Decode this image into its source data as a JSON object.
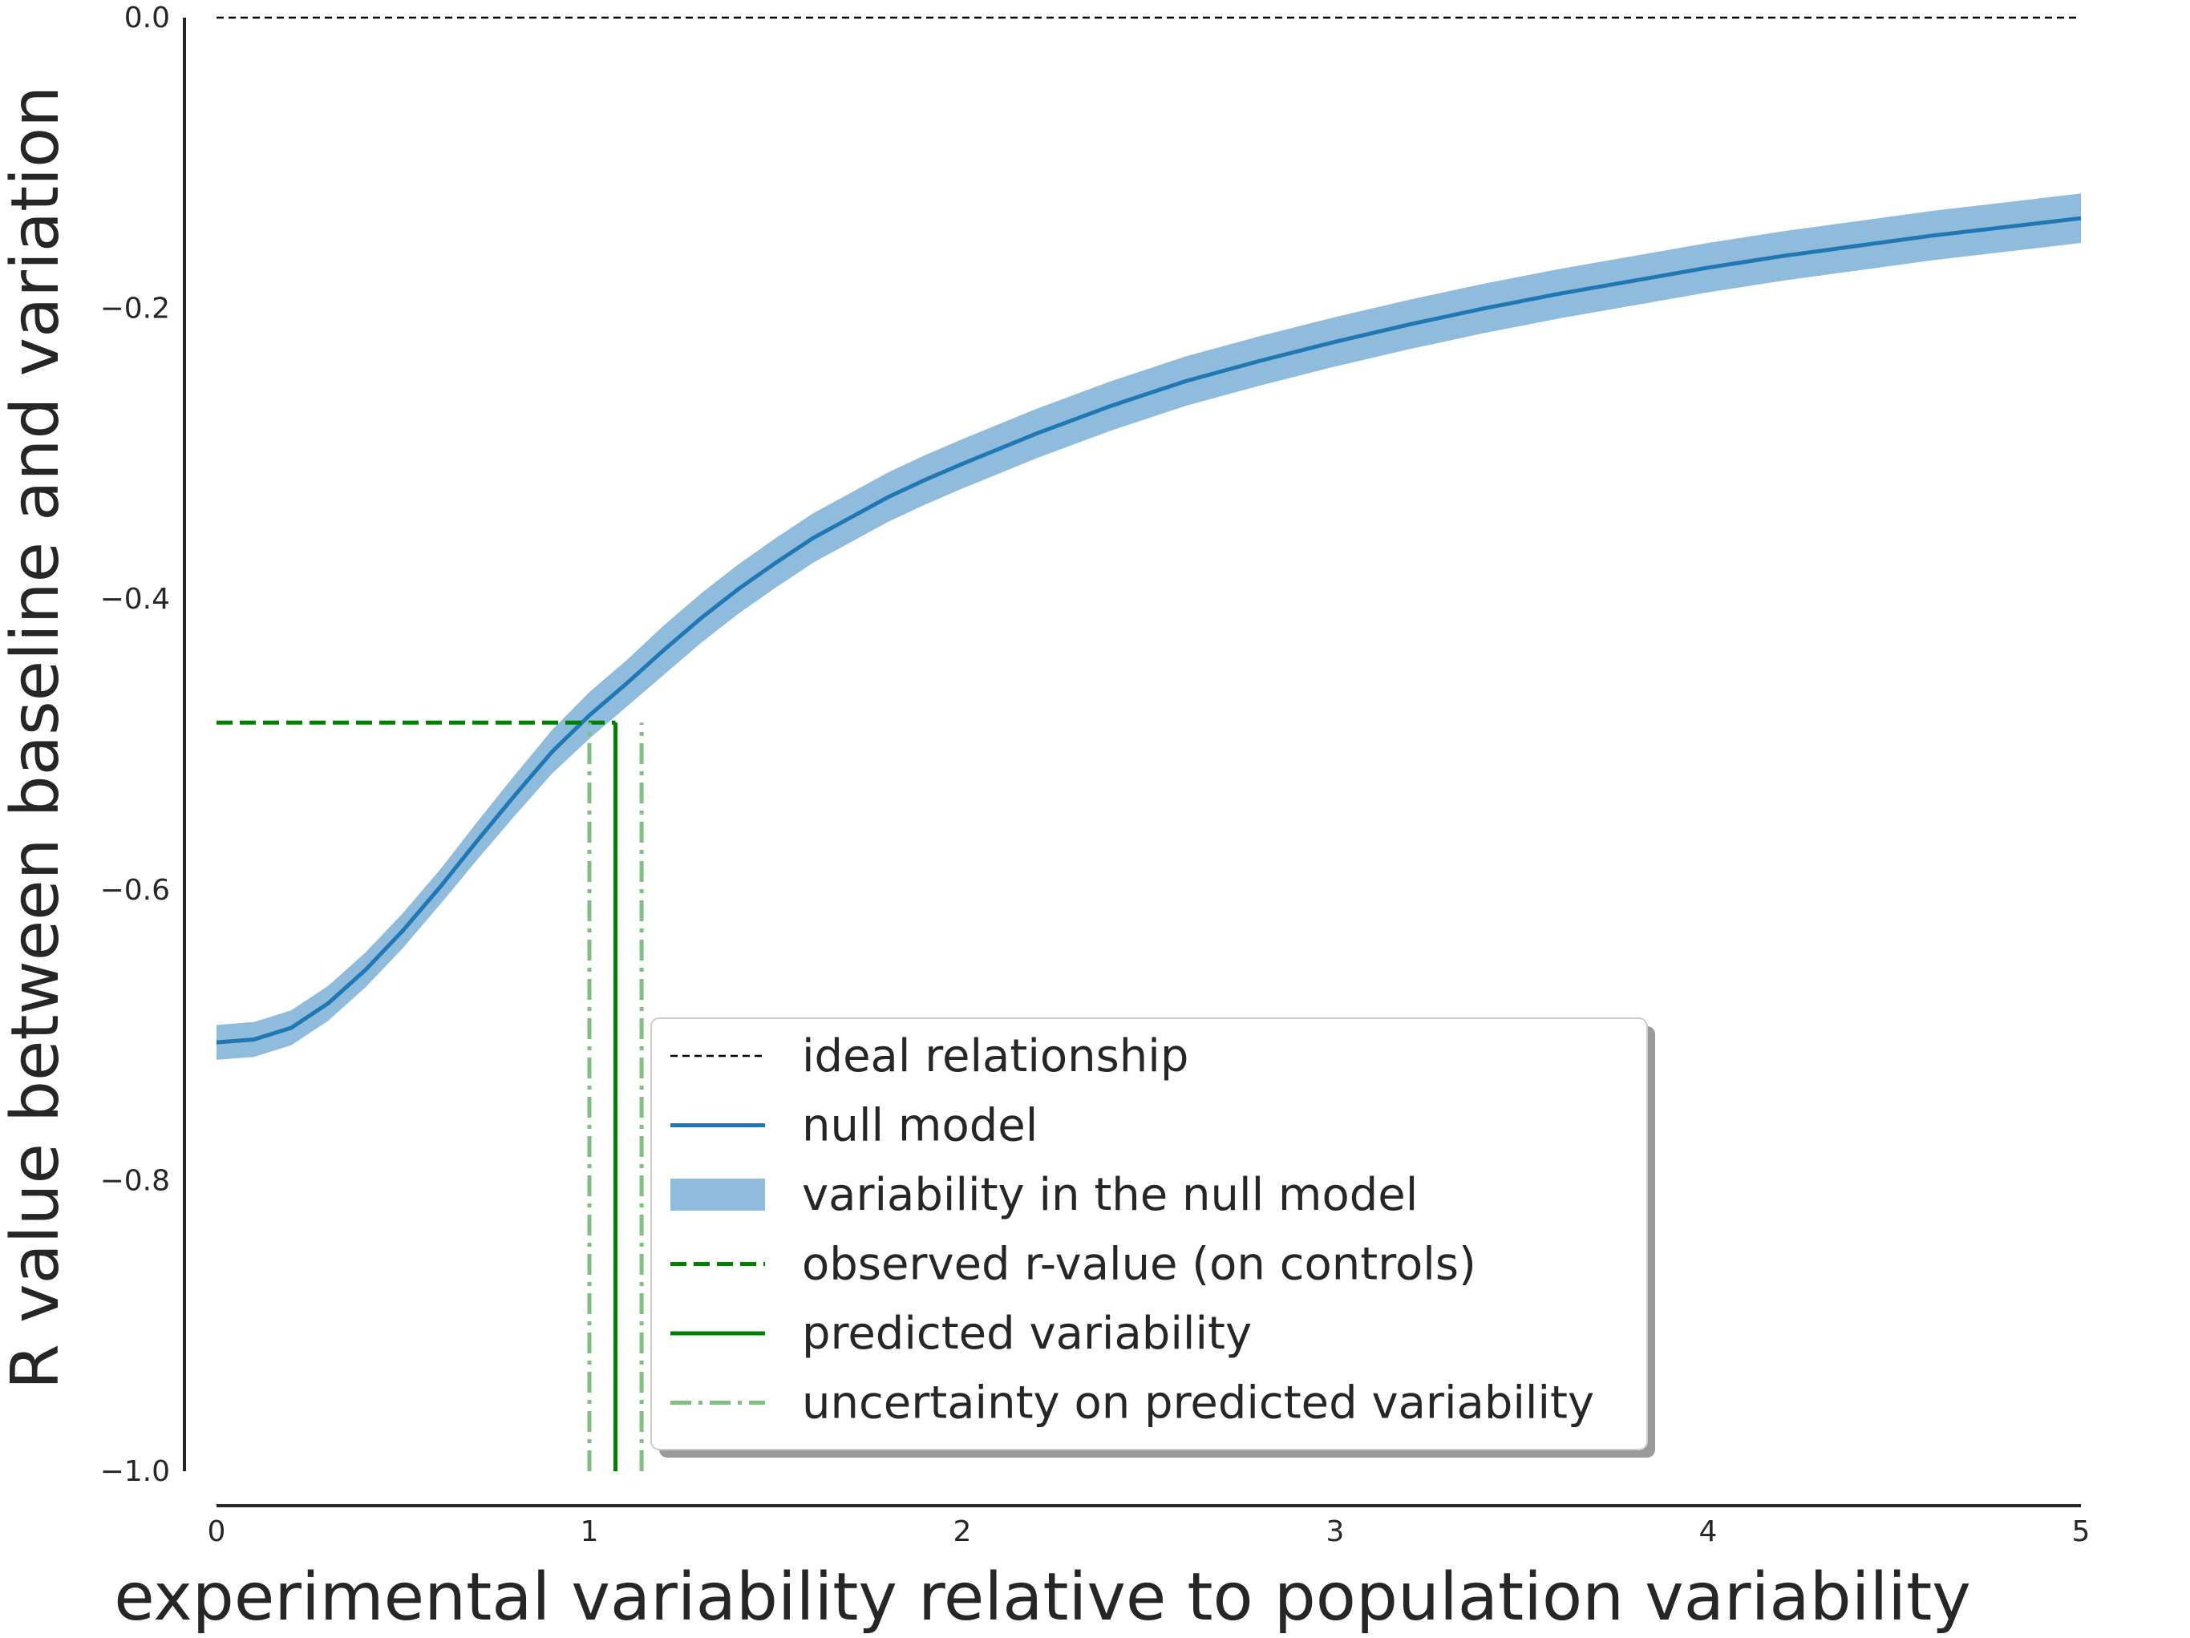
{
  "chart_data": {
    "type": "line",
    "xlabel": "experimental variability relative to population variability",
    "ylabel": "R value between baseline and variation",
    "xlim": [
      0,
      5
    ],
    "ylim": [
      -1.0,
      0.0
    ],
    "x_ticks": [
      "0",
      "1",
      "2",
      "3",
      "4",
      "5"
    ],
    "y_ticks": [
      "0.0",
      "−0.2",
      "−0.4",
      "−0.6",
      "−0.8",
      "−1.0"
    ],
    "grid": false,
    "legend_position": "lower-right",
    "series": [
      {
        "name": "ideal relationship",
        "style": "dashed",
        "color": "#000000",
        "x": [
          0,
          5
        ],
        "y": [
          0.0,
          0.0
        ]
      },
      {
        "name": "null model",
        "style": "solid",
        "color": "#1f77b4",
        "x": [
          0,
          0.1,
          0.2,
          0.3,
          0.4,
          0.5,
          0.6,
          0.7,
          0.8,
          0.9,
          1.0,
          1.1,
          1.2,
          1.3,
          1.4,
          1.5,
          1.6,
          1.7,
          1.8,
          1.9,
          2.0,
          2.2,
          2.4,
          2.6,
          2.8,
          3.0,
          3.2,
          3.4,
          3.6,
          3.8,
          4.0,
          4.2,
          4.4,
          4.6,
          4.8,
          5.0
        ],
        "y": [
          -0.705,
          -0.703,
          -0.695,
          -0.678,
          -0.655,
          -0.628,
          -0.598,
          -0.566,
          -0.535,
          -0.505,
          -0.48,
          -0.458,
          -0.435,
          -0.413,
          -0.393,
          -0.375,
          -0.358,
          -0.344,
          -0.33,
          -0.318,
          -0.307,
          -0.286,
          -0.267,
          -0.25,
          -0.236,
          -0.223,
          -0.211,
          -0.2,
          -0.19,
          -0.181,
          -0.172,
          -0.164,
          -0.157,
          -0.15,
          -0.144,
          -0.138
        ]
      },
      {
        "name": "variability in the null model",
        "style": "band",
        "color": "#8fbbdd",
        "half_width": [
          0.012,
          0.012,
          0.012,
          0.012,
          0.012,
          0.012,
          0.012,
          0.013,
          0.014,
          0.015,
          0.016,
          0.016,
          0.017,
          0.017,
          0.017,
          0.017,
          0.017,
          0.017,
          0.017,
          0.017,
          0.017,
          0.017,
          0.017,
          0.017,
          0.017,
          0.017,
          0.017,
          0.017,
          0.017,
          0.017,
          0.017,
          0.017,
          0.017,
          0.017,
          0.017,
          0.017
        ]
      },
      {
        "name": "observed r-value (on controls)",
        "style": "dashed",
        "color": "#008000",
        "x": [
          0,
          1.07
        ],
        "y": [
          -0.485,
          -0.485
        ]
      },
      {
        "name": "predicted variability",
        "style": "solid",
        "color": "#008000",
        "x": [
          1.07,
          1.07
        ],
        "y": [
          -1.0,
          -0.485
        ]
      },
      {
        "name": "uncertainty on predicted variability",
        "style": "dashdot",
        "color": "#7fbf7f",
        "x_values": [
          1.0,
          1.14
        ],
        "y": [
          -1.0,
          -0.485
        ]
      }
    ]
  }
}
